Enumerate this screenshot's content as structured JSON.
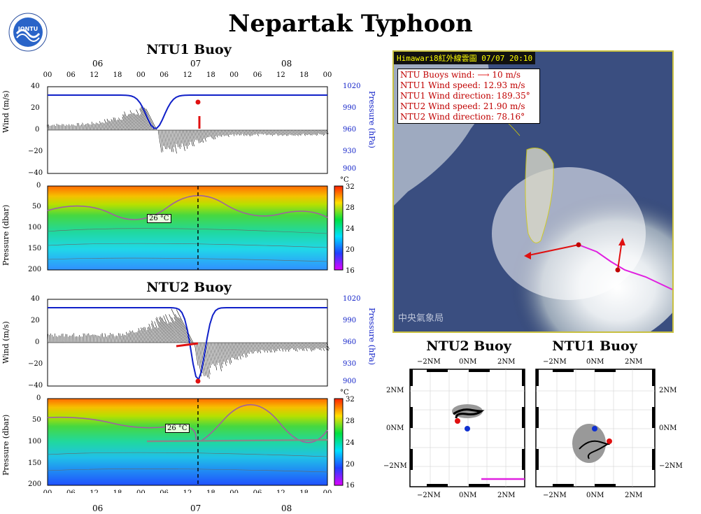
{
  "title": "Nepartak Typhoon",
  "logo_text": "IONTU",
  "panels": {
    "ntu1": {
      "title": "NTU1 Buoy",
      "wind_axis_label": "Wind (m/s)",
      "pressure_axis_label": "Pressure (hPa)",
      "depth_axis_label": "Pressure (dbar)",
      "wind_ticks": [
        "40",
        "20",
        "0",
        "−20",
        "−40"
      ],
      "pressure_ticks": [
        "1020",
        "990",
        "960",
        "930",
        "900"
      ],
      "depth_ticks": [
        "0",
        "50",
        "100",
        "150",
        "200"
      ],
      "colorbar_unit": "°C",
      "colorbar_ticks": [
        "32",
        "28",
        "24",
        "20",
        "16"
      ],
      "isotherm_label": "26 °C"
    },
    "ntu2": {
      "title": "NTU2 Buoy",
      "wind_axis_label": "Wind (m/s)",
      "pressure_axis_label": "Pressure (hPa)",
      "depth_axis_label": "Pressure (dbar)",
      "wind_ticks": [
        "40",
        "20",
        "0",
        "−20",
        "−40"
      ],
      "pressure_ticks": [
        "1020",
        "990",
        "960",
        "930",
        "900"
      ],
      "depth_ticks": [
        "0",
        "50",
        "100",
        "150",
        "200"
      ],
      "colorbar_unit": "°C",
      "colorbar_ticks": [
        "32",
        "28",
        "24",
        "20",
        "16"
      ],
      "isotherm_label": "26 °C"
    }
  },
  "time_axis": {
    "hour_ticks": [
      "00",
      "06",
      "12",
      "18",
      "00",
      "06",
      "12",
      "18",
      "00",
      "06",
      "12",
      "18",
      "00"
    ],
    "day_labels": [
      "06",
      "07",
      "08"
    ]
  },
  "satellite": {
    "header": "Himawari8紅外線雲圖   07/07 20:10",
    "legend": [
      "NTU Buoys wind:",
      "NTU1 Wind speed: 12.93 m/s",
      "NTU1 Wind direction: 189.35°",
      "NTU2 Wind speed: 21.90 m/s",
      "NTU2 Wind direction: 78.16°"
    ],
    "legend_scale": "10 m/s",
    "watermark": "中央氣象局"
  },
  "drift": {
    "ntu2": {
      "title": "NTU2 Buoy"
    },
    "ntu1": {
      "title": "NTU1 Buoy"
    },
    "x_ticks": [
      "−2NM",
      "0NM",
      "2NM"
    ],
    "y_ticks": [
      "2NM",
      "0NM",
      "−2NM"
    ]
  },
  "colors": {
    "pressure_line": "#1020c8",
    "marker": "#e01010",
    "blue_marker": "#1030d0",
    "track": "#e020e0",
    "gray": "#999999"
  }
}
